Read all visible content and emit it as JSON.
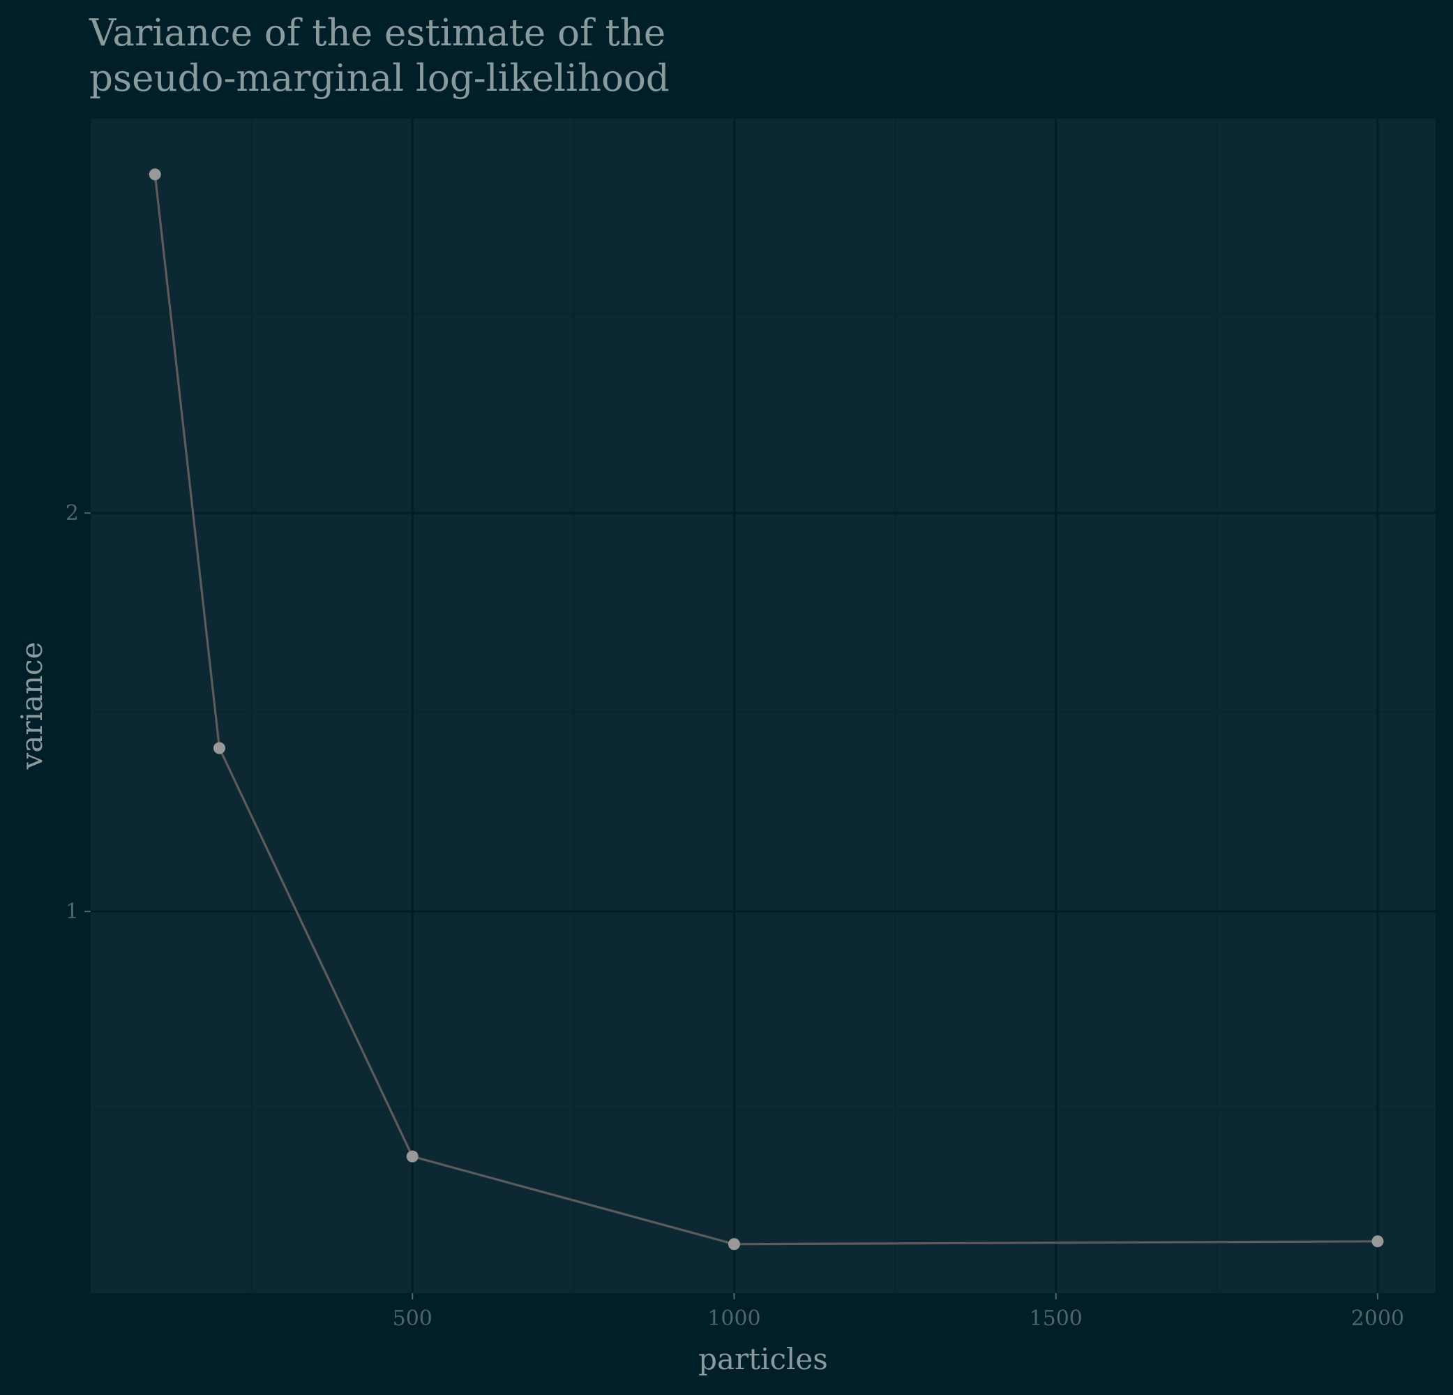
{
  "chart_data": {
    "type": "line",
    "title": [
      "Variance of the estimate of the",
      "pseudo-marginal log-likelihood"
    ],
    "xlabel": "particles",
    "ylabel": "variance",
    "xlim": [
      0,
      2090
    ],
    "ylim": [
      0.042,
      2.99
    ],
    "x_ticks": [
      {
        "value": 500,
        "label": "500"
      },
      {
        "value": 1000,
        "label": "1000"
      },
      {
        "value": 1500,
        "label": "1500"
      },
      {
        "value": 2000,
        "label": "2000"
      }
    ],
    "x_minor_ticks": [
      250,
      750,
      1250,
      1750
    ],
    "y_ticks": [
      {
        "value": 1,
        "label": "1"
      },
      {
        "value": 2,
        "label": "2"
      }
    ],
    "y_minor_ticks": [
      0.5,
      1.5,
      2.5
    ],
    "grid": true,
    "legend": "none",
    "series": [
      {
        "x": [
          100,
          200,
          500,
          1000,
          2000
        ],
        "y": [
          2.85,
          1.41,
          0.385,
          0.165,
          0.172
        ]
      }
    ],
    "colors": {
      "background": "#011f28",
      "panel": "#0c2933",
      "grid_major": "#031d26",
      "grid_minor": "#0a242d",
      "line": "#5c5c5c",
      "point": "#999999"
    }
  }
}
